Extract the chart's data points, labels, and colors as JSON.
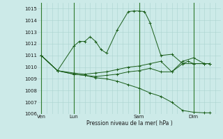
{
  "title": "Pression niveau de la mer( hPa )",
  "bg_color": "#cceae8",
  "grid_color": "#aad4d0",
  "line_color": "#1a5e1a",
  "day_line_color": "#2d7a2d",
  "ylim": [
    1006,
    1015.5
  ],
  "yticks": [
    1006,
    1007,
    1008,
    1009,
    1010,
    1011,
    1012,
    1013,
    1014,
    1015
  ],
  "xtick_labels": [
    "Ven",
    "Lun",
    "Sam",
    "Dim"
  ],
  "xtick_positions": [
    0,
    3,
    9,
    14
  ],
  "xlim": [
    -0.3,
    16.5
  ],
  "series": [
    {
      "x": [
        0,
        1.5,
        3,
        3.5,
        4,
        4.5,
        5,
        5.5,
        6,
        7,
        8,
        8.5,
        9,
        9.5,
        10,
        11,
        12,
        13,
        13.5,
        14,
        15,
        15.5
      ],
      "y": [
        1011.0,
        1009.7,
        1011.8,
        1012.2,
        1012.2,
        1012.6,
        1012.2,
        1011.5,
        1011.2,
        1013.2,
        1014.75,
        1014.8,
        1014.8,
        1014.75,
        1013.8,
        1011.0,
        1011.1,
        1010.3,
        1010.5,
        1010.3,
        1010.3,
        1010.3
      ]
    },
    {
      "x": [
        0,
        1.5,
        3,
        4,
        5,
        6,
        7,
        8,
        9,
        10,
        11,
        12,
        13,
        14,
        15,
        15.5
      ],
      "y": [
        1011.0,
        1009.7,
        1009.5,
        1009.4,
        1009.5,
        1009.6,
        1009.8,
        1010.0,
        1010.1,
        1010.3,
        1010.5,
        1009.6,
        1010.5,
        1010.8,
        1010.3,
        1010.3
      ]
    },
    {
      "x": [
        0,
        1.5,
        3,
        4,
        5,
        6,
        7,
        8,
        9,
        10,
        11,
        12,
        13,
        14,
        15,
        15.5
      ],
      "y": [
        1011.0,
        1009.7,
        1009.4,
        1009.3,
        1009.2,
        1009.3,
        1009.4,
        1009.6,
        1009.7,
        1009.9,
        1009.6,
        1009.6,
        1010.3,
        1010.3,
        1010.3,
        1010.3
      ]
    },
    {
      "x": [
        0,
        1.5,
        3,
        4,
        5,
        6,
        7,
        8,
        9,
        10,
        11,
        12,
        13,
        14,
        15,
        15.5
      ],
      "y": [
        1011.0,
        1009.7,
        1009.4,
        1009.3,
        1009.1,
        1009.0,
        1008.8,
        1008.5,
        1008.2,
        1007.8,
        1007.5,
        1007.0,
        1006.3,
        1006.15,
        1006.1,
        1006.1
      ]
    }
  ]
}
